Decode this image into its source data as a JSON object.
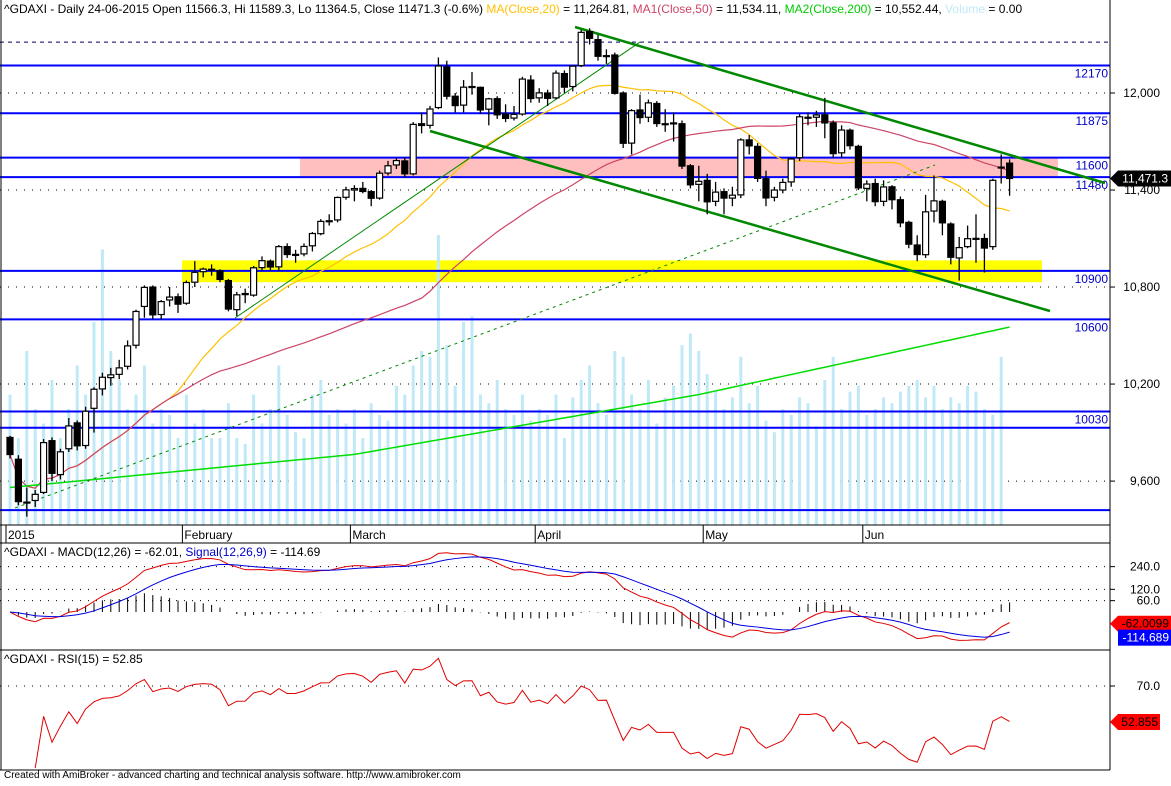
{
  "header": {
    "symbol_info": "^GDAXI - Daily 24-06-2015 Open 11566.3, Hi 11589.3, Lo 11364.5, Close 11471.3 (-0.6%)",
    "ma20": "MA(Close,20)",
    "ma20_value": " = 11,264.81,",
    "ma50": "MA1(Close,50)",
    "ma50_value": " = 11,534.11,",
    "ma200": "MA2(Close,200)",
    "ma200_value": " = 10,552.44,",
    "volume": "Volume",
    "volume_value": " = 0.00"
  },
  "colors": {
    "ma20": "#ffc000",
    "ma50": "#cc4466",
    "ma200": "#00dd00",
    "volume": "#bfe9f7",
    "levels": "#0000ff",
    "trend": "#008800",
    "zone_pink": "#ffbfbf",
    "zone_yellow": "#ffff00"
  },
  "price_axis": {
    "ticks": [
      {
        "value": 12000,
        "label": "12,000"
      },
      {
        "value": 11400,
        "label": "11,400"
      },
      {
        "value": 10800,
        "label": "10,800"
      },
      {
        "value": 10200,
        "label": "10,200"
      },
      {
        "value": 9600,
        "label": "9,600"
      }
    ],
    "last_price": "11,471.3",
    "last_value": 11471.3
  },
  "levels": [
    {
      "value": 12170,
      "label": "12170"
    },
    {
      "value": 11875,
      "label": "11875"
    },
    {
      "value": 11600,
      "label": "11600"
    },
    {
      "value": 11480,
      "label": "11480"
    },
    {
      "value": 10900,
      "label": "10900"
    },
    {
      "value": 10600,
      "label": "10600"
    },
    {
      "value": 10030,
      "label": "10030"
    },
    {
      "value": 9930,
      "label": ""
    },
    {
      "value": 9420,
      "label": ""
    }
  ],
  "dashed_level": 12315,
  "zones": [
    {
      "from": 11480,
      "to": 11600,
      "color": "pink"
    },
    {
      "from": 10830,
      "to": 10965,
      "color": "yellow"
    }
  ],
  "time_axis": [
    {
      "bar": 0,
      "label": "2015"
    },
    {
      "bar": 21,
      "label": "February"
    },
    {
      "bar": 41,
      "label": "March"
    },
    {
      "bar": 63,
      "label": "April"
    },
    {
      "bar": 83,
      "label": "May"
    },
    {
      "bar": 102,
      "label": "Jun"
    }
  ],
  "chart_data": {
    "type": "candlestick",
    "title": "^GDAXI - Daily",
    "period": "2015-01-02 to 2015-06-24",
    "open": [
      9870,
      9735,
      9470,
      9480,
      9530,
      9850,
      9640,
      9800,
      9960,
      9820,
      10050,
      10170,
      10240,
      10260,
      10310,
      10440,
      10680,
      10800,
      10630,
      10720,
      10740,
      10700,
      10830,
      10895,
      10910,
      10900,
      10840,
      10660,
      10760,
      10750,
      10920,
      10960,
      10925,
      11050,
      11000,
      11005,
      11055,
      11130,
      11210,
      11215,
      11355,
      11400,
      11410,
      11390,
      11350,
      11505,
      11555,
      11580,
      11500,
      11810,
      11800,
      11910,
      12160,
      11980,
      11925,
      12040,
      12035,
      11900,
      11965,
      11870,
      11845,
      11870,
      12080,
      11970,
      12000,
      11970,
      12120,
      12040,
      12170,
      12380,
      12330,
      12225,
      12235,
      12000,
      11690,
      11895,
      11850,
      11935,
      11810,
      11815,
      11810,
      11550,
      11435,
      11460,
      11330,
      11390,
      11350,
      11370,
      11710,
      11670,
      11470,
      11355,
      11400,
      11450,
      11600,
      11850,
      11850,
      11865,
      11815,
      11630,
      11770,
      11670,
      11410,
      11440,
      11330,
      11420,
      11340,
      11200,
      11060,
      11000,
      11270,
      11330,
      11190,
      10980,
      11050,
      11100,
      11100,
      11050,
      11540,
      11566.3
    ],
    "high": [
      9880,
      9760,
      9560,
      9545,
      9860,
      9870,
      9800,
      9990,
      9975,
      10060,
      10180,
      10270,
      10300,
      10350,
      10470,
      10660,
      10810,
      10810,
      10720,
      10800,
      10760,
      10840,
      10960,
      10920,
      10940,
      10910,
      10850,
      10770,
      10790,
      10930,
      10990,
      10970,
      11060,
      11070,
      11030,
      11070,
      11140,
      11220,
      11250,
      11360,
      11420,
      11430,
      11450,
      11400,
      11520,
      11580,
      11600,
      11600,
      11820,
      11880,
      11920,
      12220,
      12200,
      12000,
      12080,
      12130,
      12040,
      11970,
      11980,
      11930,
      11920,
      12100,
      12110,
      12030,
      12020,
      12140,
      12140,
      12170,
      12390,
      12400,
      12360,
      12270,
      12250,
      12010,
      11900,
      11990,
      11960,
      11950,
      11900,
      11880,
      11830,
      11560,
      11550,
      11500,
      11450,
      11410,
      11420,
      11720,
      11740,
      11690,
      11520,
      11420,
      11470,
      11600,
      11870,
      11880,
      11890,
      11970,
      11830,
      11800,
      11780,
      11680,
      11460,
      11470,
      11460,
      11430,
      11360,
      11210,
      11120,
      11370,
      11490,
      11340,
      11200,
      11110,
      11180,
      11250,
      11130,
      11470,
      11620,
      11589.3
    ],
    "low": [
      9740,
      9450,
      9380,
      9440,
      9520,
      9600,
      9610,
      9780,
      9790,
      9800,
      9900,
      10130,
      10190,
      10230,
      10290,
      10420,
      10610,
      10600,
      10600,
      10680,
      10640,
      10690,
      10800,
      10860,
      10870,
      10830,
      10650,
      10620,
      10700,
      10740,
      10900,
      10900,
      10900,
      10980,
      10950,
      10990,
      11020,
      11120,
      11180,
      11200,
      11340,
      11330,
      11380,
      11300,
      11340,
      11490,
      11530,
      11480,
      11490,
      11750,
      11780,
      11900,
      11960,
      11880,
      11880,
      11990,
      11870,
      11800,
      11840,
      11820,
      11830,
      11860,
      11940,
      11940,
      11920,
      11960,
      12000,
      12010,
      12160,
      12300,
      12200,
      12180,
      11990,
      11660,
      11620,
      11810,
      11820,
      11790,
      11760,
      11700,
      11530,
      11410,
      11330,
      11250,
      11300,
      11250,
      11300,
      11350,
      11620,
      11450,
      11300,
      11330,
      11380,
      11420,
      11580,
      11800,
      11790,
      11720,
      11600,
      11600,
      11650,
      11400,
      11330,
      11300,
      11300,
      11280,
      11170,
      11040,
      10960,
      10980,
      11200,
      11120,
      10940,
      10840,
      11040,
      10950,
      10890,
      11030,
      11440,
      11364.5
    ],
    "close": [
      9764,
      9473,
      9469,
      9518,
      9838,
      9648,
      9781,
      9941,
      9818,
      10032,
      10168,
      10242,
      10257,
      10300,
      10436,
      10649,
      10798,
      10628,
      10710,
      10738,
      10694,
      10828,
      10891,
      10911,
      10905,
      10847,
      10664,
      10752,
      10753,
      10919,
      10963,
      10924,
      11050,
      11001,
      11002,
      11051,
      11131,
      11206,
      11210,
      11354,
      11401,
      11409,
      11391,
      11349,
      11504,
      11550,
      11582,
      11500,
      11806,
      11799,
      11901,
      12167,
      11980,
      11922,
      12036,
      12039,
      11895,
      11964,
      11865,
      11843,
      11868,
      12086,
      11966,
      12001,
      11967,
      12123,
      12036,
      12166,
      12375,
      12338,
      12227,
      12231,
      11998,
      11689,
      11891,
      11848,
      11939,
      11811,
      11810,
      11811,
      11548,
      11432,
      11454,
      11327,
      11387,
      11350,
      11368,
      11710,
      11673,
      11472,
      11351,
      11400,
      11447,
      11592,
      11853,
      11848,
      11864,
      11815,
      11625,
      11771,
      11674,
      11413,
      11437,
      11328,
      11419,
      11340,
      11197,
      11065,
      11001,
      11265,
      11333,
      11197,
      10984,
      11044,
      11099,
      11101,
      11041,
      11460,
      11542,
      11471.3
    ],
    "volume_relative": [
      45,
      30,
      60,
      40,
      35,
      50,
      30,
      40,
      55,
      45,
      70,
      95,
      60,
      50,
      40,
      45,
      55,
      35,
      40,
      38,
      30,
      45,
      35,
      40,
      30,
      30,
      42,
      30,
      28,
      45,
      35,
      40,
      55,
      38,
      32,
      30,
      45,
      50,
      38,
      40,
      35,
      40,
      30,
      42,
      38,
      36,
      48,
      45,
      55,
      60,
      58,
      100,
      62,
      48,
      70,
      72,
      45,
      42,
      50,
      40,
      38,
      45,
      36,
      40,
      38,
      45,
      30,
      44,
      50,
      55,
      42,
      38,
      60,
      58,
      45,
      40,
      50,
      35,
      44,
      48,
      62,
      66,
      60,
      52,
      46,
      40,
      44,
      58,
      42,
      48,
      36,
      32,
      40,
      38,
      44,
      42,
      34,
      50,
      58,
      40,
      46,
      48,
      38,
      40,
      44,
      42,
      46,
      48,
      50,
      44,
      48,
      40,
      44,
      42,
      48,
      46,
      40,
      38,
      58,
      0
    ],
    "ma200_samples": {
      "bars": [
        0,
        41,
        82,
        119
      ],
      "values": [
        9560,
        9765,
        10135,
        10552.44
      ]
    },
    "ylim": [
      9222,
      12574
    ]
  },
  "macd": {
    "legend_name": "^GDAXI - MACD(12,26)",
    "legend_value": " = -62.01, ",
    "signal_name": "Signal(12,26,9)",
    "signal_value": " = -114.69",
    "ticks": [
      {
        "value": 240,
        "label": "240.0"
      },
      {
        "value": 120,
        "label": "120.0"
      },
      {
        "value": 60,
        "label": "60.0"
      }
    ],
    "macd_tag": "-62.0099",
    "signal_tag": "-114.689",
    "macd_last": -62.01,
    "signal_last": -114.69
  },
  "rsi": {
    "legend_name": "^GDAXI - RSI(15)",
    "legend_value": " = 52.85",
    "ticks": [
      {
        "value": 70,
        "label": "70.0"
      }
    ],
    "tag": "52.855",
    "last": 52.855
  },
  "footer": "Created with AmiBroker - advanced charting and technical analysis software. http://www.amibroker.com"
}
